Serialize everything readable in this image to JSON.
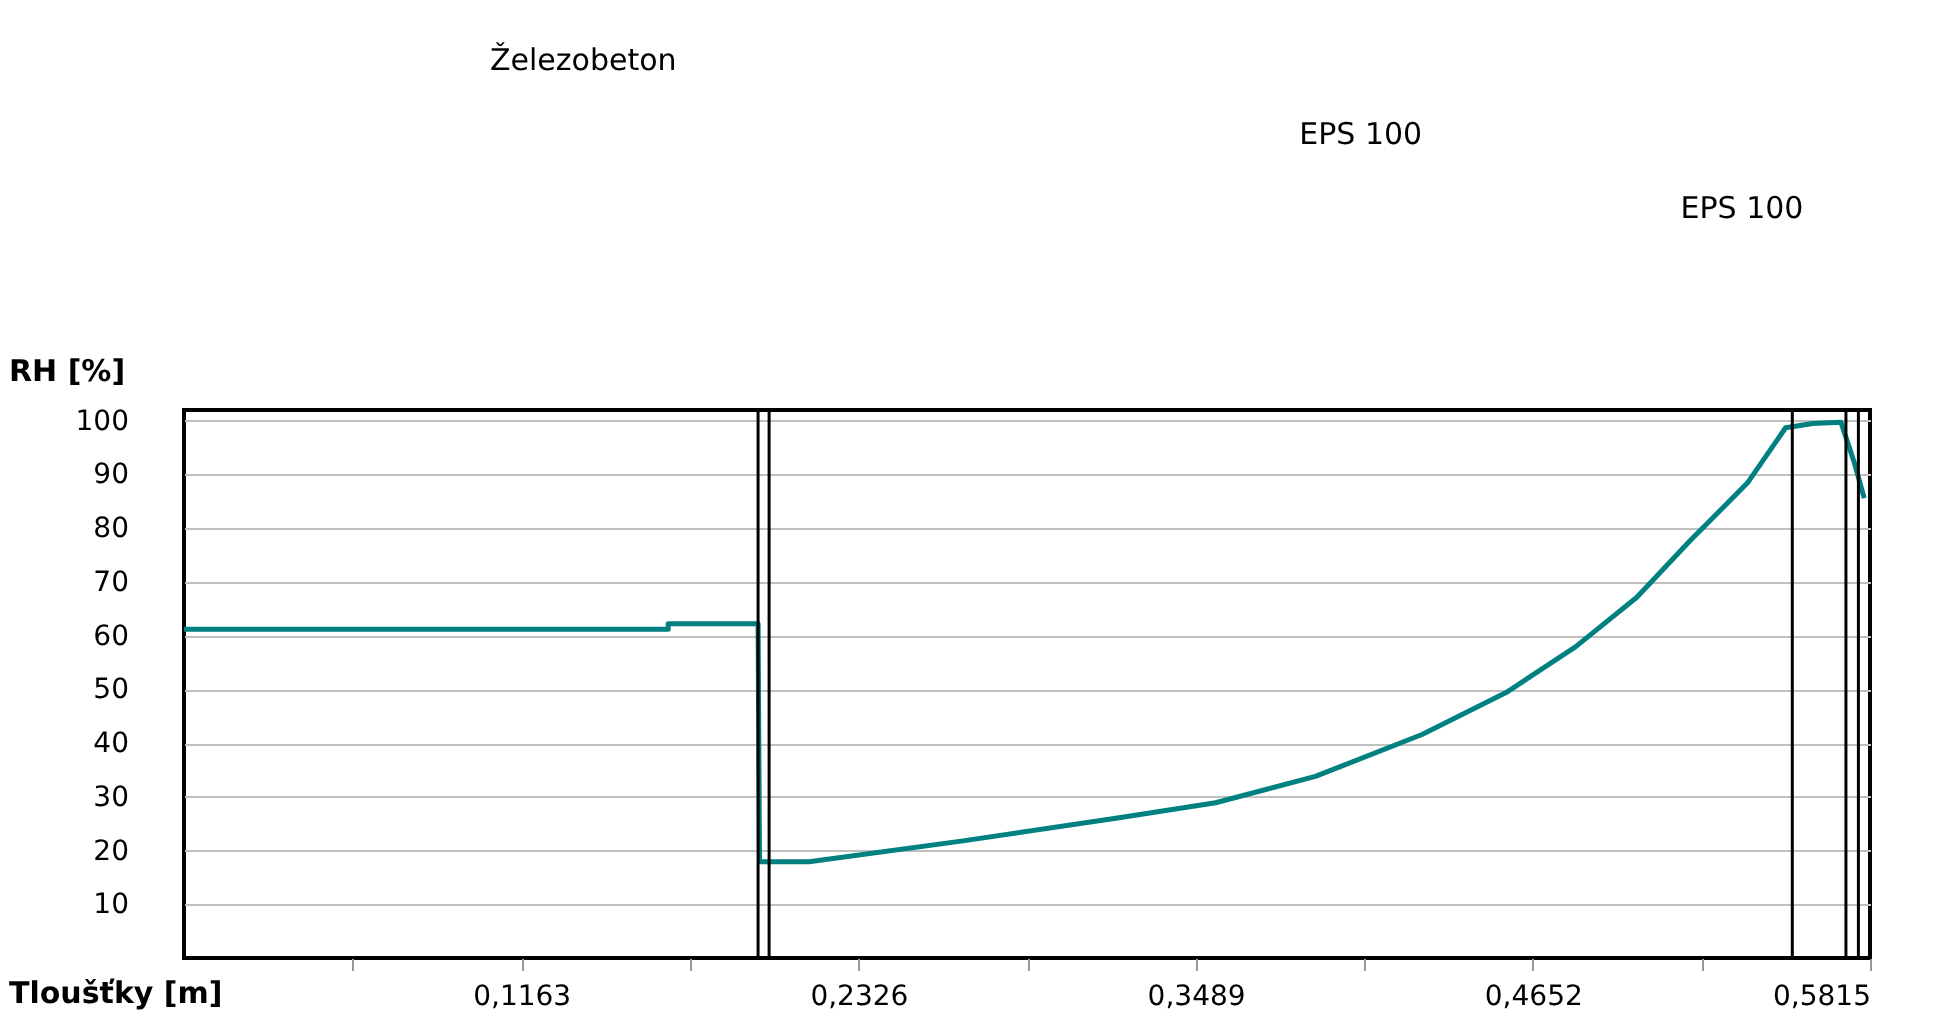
{
  "chart_data": {
    "type": "line",
    "xlabel": "Tloušťky [m]",
    "ylabel": "RH [%]",
    "x": [
      0,
      0.167,
      0.167,
      0.198,
      0.1985,
      0.2156,
      0.2687,
      0.3214,
      0.3558,
      0.3902,
      0.427,
      0.456,
      0.4799,
      0.501,
      0.5195,
      0.5392,
      0.5524,
      0.5617,
      0.5715,
      0.5762,
      0.5795
    ],
    "series": [
      {
        "color": "#008080",
        "values": [
          61.2,
          61.2,
          62.2,
          62.2,
          17.9,
          17.9,
          21.8,
          26.0,
          28.9,
          33.8,
          41.6,
          49.4,
          57.9,
          67.1,
          77.7,
          88.4,
          98.7,
          99.5,
          99.7,
          92,
          85.6
        ]
      }
    ],
    "xlim": [
      0,
      0.5815
    ],
    "ylim": [
      0,
      102
    ],
    "xticks": [
      {
        "value": 0.05815,
        "label": null
      },
      {
        "value": 0.1163,
        "label": "0,1163"
      },
      {
        "value": 0.17445,
        "label": null
      },
      {
        "value": 0.2326,
        "label": "0,2326"
      },
      {
        "value": 0.29075,
        "label": null
      },
      {
        "value": 0.3489,
        "label": "0,3489"
      },
      {
        "value": 0.40705,
        "label": null
      },
      {
        "value": 0.4652,
        "label": "0,4652"
      },
      {
        "value": 0.52335,
        "label": null
      },
      {
        "value": 0.5815,
        "label": "0,5815"
      }
    ],
    "yticks": [
      10,
      20,
      30,
      40,
      50,
      60,
      70,
      80,
      90,
      100
    ],
    "grid": "y",
    "marker": "none",
    "line_style": "solid",
    "ref_lines": [
      {
        "axis": "x",
        "value": 0.198,
        "color": "#000000"
      },
      {
        "axis": "x",
        "value": 0.2018,
        "color": "#000000"
      },
      {
        "axis": "x",
        "value": 0.5547,
        "color": "#000000"
      },
      {
        "axis": "x",
        "value": 0.5732,
        "color": "#000000"
      },
      {
        "axis": "x",
        "value": 0.5775,
        "color": "#000000"
      }
    ],
    "annotations": [
      "Železobeton",
      "EPS 100",
      "EPS 100"
    ]
  }
}
